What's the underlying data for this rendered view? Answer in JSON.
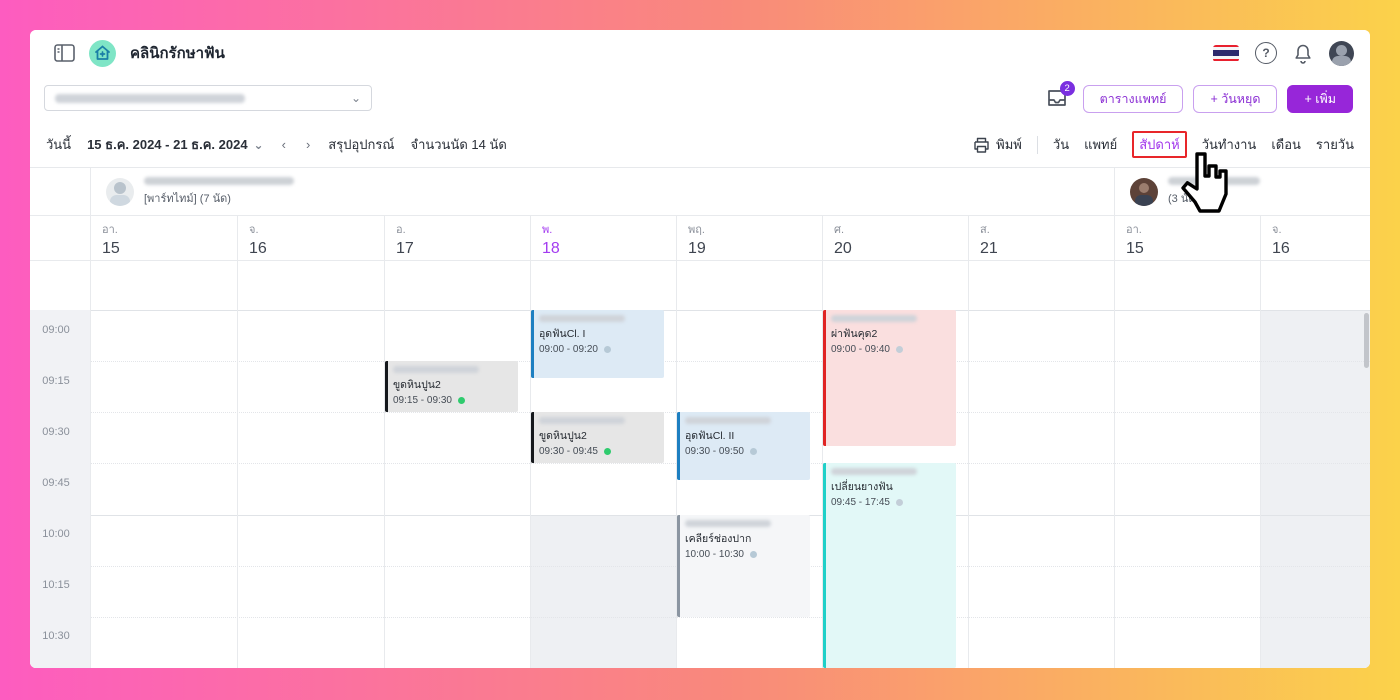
{
  "app": {
    "title": "คลินิกรักษาฟัน"
  },
  "topbar": {
    "inbox_badge": "2"
  },
  "filter_select": {
    "blurred": true,
    "value": ""
  },
  "buttons": {
    "doctor_schedule": "ตารางแพทย์",
    "holiday": "+ วันหยุด",
    "add": "+ เพิ่ม"
  },
  "toolbar": {
    "today": "วันนี้",
    "date_range": "15 ธ.ค. 2024 - 21 ธ.ค. 2024",
    "prev": "‹",
    "next": "›",
    "equipment_summary": "สรุปอุปกรณ์",
    "appointment_count": "จำนวนนัด 14 นัด",
    "print": "พิมพ์",
    "views": [
      {
        "label": "วัน",
        "active": false
      },
      {
        "label": "แพทย์",
        "active": false
      },
      {
        "label": "สัปดาห์",
        "active": true
      },
      {
        "label": "วันทำงาน",
        "active": false
      },
      {
        "label": "เดือน",
        "active": false
      },
      {
        "label": "รายวัน",
        "active": false
      }
    ]
  },
  "doctors": [
    {
      "name_blurred": true,
      "subtitle": "[พาร์ทไทม์] (7 นัด)",
      "col_start": 0,
      "col_end": 7
    },
    {
      "name_blurred": true,
      "subtitle": "(3 นัด)",
      "col_start": 7,
      "col_end": 9
    }
  ],
  "calendar": {
    "times": [
      "09:00",
      "09:15",
      "09:30",
      "09:45",
      "10:00",
      "10:15",
      "10:30"
    ],
    "days": [
      {
        "name": "อา.",
        "num": "15",
        "today": false
      },
      {
        "name": "จ.",
        "num": "16",
        "today": false
      },
      {
        "name": "อ.",
        "num": "17",
        "today": false
      },
      {
        "name": "พ.",
        "num": "18",
        "today": true
      },
      {
        "name": "พฤ.",
        "num": "19",
        "today": false
      },
      {
        "name": "ศ.",
        "num": "20",
        "today": false
      },
      {
        "name": "ส.",
        "num": "21",
        "today": false
      },
      {
        "name": "อา.",
        "num": "15",
        "today": false
      },
      {
        "name": "จ.",
        "num": "16",
        "today": false
      }
    ],
    "events": [
      {
        "day": 2,
        "title": "ขูดหินปูน2",
        "time": "09:15 - 09:30",
        "start_min": 15,
        "dur_min": 15,
        "bar": "#15181c",
        "bg": "#e6e6e6",
        "dot": "#2fcb6e"
      },
      {
        "day": 3,
        "title": "อุดฟันCl. I",
        "time": "09:00 - 09:20",
        "start_min": 0,
        "dur_min": 20,
        "bar": "#1d7fc1",
        "bg": "#ddeaf5",
        "dot": "#b6c9d6"
      },
      {
        "day": 3,
        "title": "ขูดหินปูน2",
        "time": "09:30 - 09:45",
        "start_min": 30,
        "dur_min": 15,
        "bar": "#15181c",
        "bg": "#e6e6e6",
        "dot": "#2fcb6e"
      },
      {
        "day": 4,
        "title": "อุดฟันCl. II",
        "time": "09:30 - 09:50",
        "start_min": 30,
        "dur_min": 20,
        "bar": "#1d7fc1",
        "bg": "#ddeaf5",
        "dot": "#b6c9d6"
      },
      {
        "day": 4,
        "title": "เคลียร์ช่องปาก",
        "time": "10:00 - 10:30",
        "start_min": 60,
        "dur_min": 30,
        "bar": "#8b95a1",
        "bg": "#f5f6f8",
        "dot": "#b6c9d6"
      },
      {
        "day": 5,
        "title": "ผ่าฟันคุด2",
        "time": "09:00 - 09:40",
        "start_min": 0,
        "dur_min": 40,
        "bar": "#e02424",
        "bg": "#fadfdf",
        "dot": "#c3ced8"
      },
      {
        "day": 5,
        "title": "เปลี่ยนยางฟัน",
        "time": "09:45 - 17:45",
        "start_min": 45,
        "dur_min": 480,
        "bar": "#1fd0c8",
        "bg": "#e2f8f7",
        "dot": "#c3ced8"
      }
    ],
    "blocked_regions": [
      {
        "day": 3,
        "start_min": 60,
        "to_bottom": true
      },
      {
        "day": 8,
        "start_min": 0,
        "to_bottom": true
      }
    ]
  },
  "colors": {
    "accent_purple": "#9726d9",
    "active_view_purple": "#a135ec",
    "annotation_red": "#e8262a",
    "today_purple": "#a33bf0"
  }
}
